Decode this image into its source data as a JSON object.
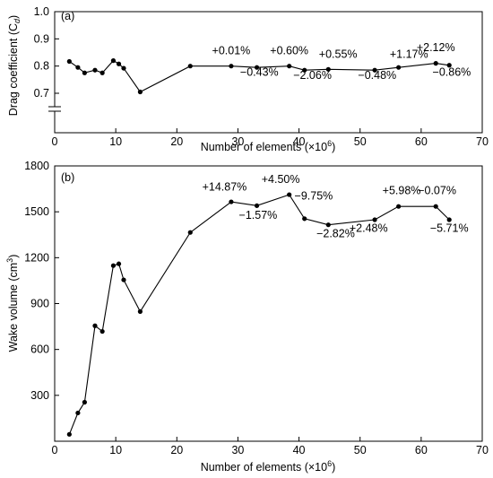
{
  "chart_data": [
    {
      "type": "line",
      "panel_label": "(a)",
      "xlabel": "Number of elements (×10",
      "xlabel_sup": "6",
      "xlabel_tail": ")",
      "ylabel": "Drag coefficient (C",
      "ylabel_sub": "d",
      "ylabel_tail": ")",
      "xlim": [
        0,
        70
      ],
      "ylim": [
        0.65,
        1.0
      ],
      "y_axis_break": true,
      "grid": false,
      "x_ticks": [
        0,
        10,
        20,
        30,
        40,
        50,
        60,
        70
      ],
      "x_tick_labels": [
        "0",
        "10",
        "20",
        "30",
        "40",
        "50",
        "60",
        "70"
      ],
      "y_ticks": [
        0.7,
        0.8,
        0.9,
        1.0
      ],
      "y_tick_labels": [
        "0.7",
        "0.8",
        "0.9",
        "1.0"
      ],
      "x": [
        2.4,
        3.8,
        4.9,
        6.6,
        7.8,
        9.6,
        10.5,
        11.3,
        14.0,
        22.2,
        28.9,
        33.1,
        38.4,
        40.9,
        44.8,
        52.4,
        56.3,
        62.4,
        64.6
      ],
      "y": [
        0.817,
        0.795,
        0.775,
        0.785,
        0.775,
        0.82,
        0.808,
        0.792,
        0.705,
        0.8,
        0.8,
        0.795,
        0.8,
        0.785,
        0.788,
        0.785,
        0.795,
        0.81,
        0.803
      ],
      "annotations": [
        {
          "text": "+0.01%",
          "x": 28.9,
          "y": 0.843
        },
        {
          "text": "−0.43%",
          "x": 33.5,
          "y": 0.765
        },
        {
          "text": "+0.60%",
          "x": 38.4,
          "y": 0.843
        },
        {
          "text": "−2.06%",
          "x": 42.2,
          "y": 0.752
        },
        {
          "text": "+0.55%",
          "x": 46.4,
          "y": 0.83
        },
        {
          "text": "−0.48%",
          "x": 52.8,
          "y": 0.752
        },
        {
          "text": "+1.17%",
          "x": 58.0,
          "y": 0.83
        },
        {
          "text": "+2.12%",
          "x": 62.4,
          "y": 0.855
        },
        {
          "text": "−0.86%",
          "x": 65.0,
          "y": 0.765
        }
      ]
    },
    {
      "type": "line",
      "panel_label": "(b)",
      "xlabel": "Number of elements (×10",
      "xlabel_sup": "6",
      "xlabel_tail": ")",
      "ylabel": "Wake volume (cm",
      "ylabel_sup": "3",
      "ylabel_tail": ")",
      "xlim": [
        0,
        70
      ],
      "ylim": [
        0,
        1800
      ],
      "grid": false,
      "x_ticks": [
        0,
        10,
        20,
        30,
        40,
        50,
        60,
        70
      ],
      "x_tick_labels": [
        "0",
        "10",
        "20",
        "30",
        "40",
        "50",
        "60",
        "70"
      ],
      "y_ticks": [
        0,
        300,
        600,
        900,
        1200,
        1500,
        1800
      ],
      "y_tick_labels": [
        "",
        "300",
        "600",
        "900",
        "1200",
        "1500",
        "1800"
      ],
      "x": [
        2.4,
        3.8,
        4.9,
        6.6,
        7.8,
        9.6,
        10.5,
        11.3,
        14.0,
        22.2,
        28.9,
        33.1,
        38.4,
        40.9,
        44.8,
        52.4,
        56.3,
        62.4,
        64.6
      ],
      "y": [
        45,
        185,
        255,
        755,
        718,
        1148,
        1160,
        1055,
        848,
        1365,
        1565,
        1540,
        1612,
        1455,
        1415,
        1448,
        1535,
        1535,
        1448
      ],
      "annotations": [
        {
          "text": "+14.87%",
          "x": 27.8,
          "y": 1638
        },
        {
          "text": "−1.57%",
          "x": 33.3,
          "y": 1455
        },
        {
          "text": "+4.50%",
          "x": 37.0,
          "y": 1688
        },
        {
          "text": "−9.75%",
          "x": 42.4,
          "y": 1580
        },
        {
          "text": "−2.82%",
          "x": 46.0,
          "y": 1335
        },
        {
          "text": "+2.48%",
          "x": 51.4,
          "y": 1370
        },
        {
          "text": "+5.98%",
          "x": 56.8,
          "y": 1615
        },
        {
          "text": "−0.07%",
          "x": 62.6,
          "y": 1615
        },
        {
          "text": "−5.71%",
          "x": 64.6,
          "y": 1370
        }
      ]
    }
  ]
}
